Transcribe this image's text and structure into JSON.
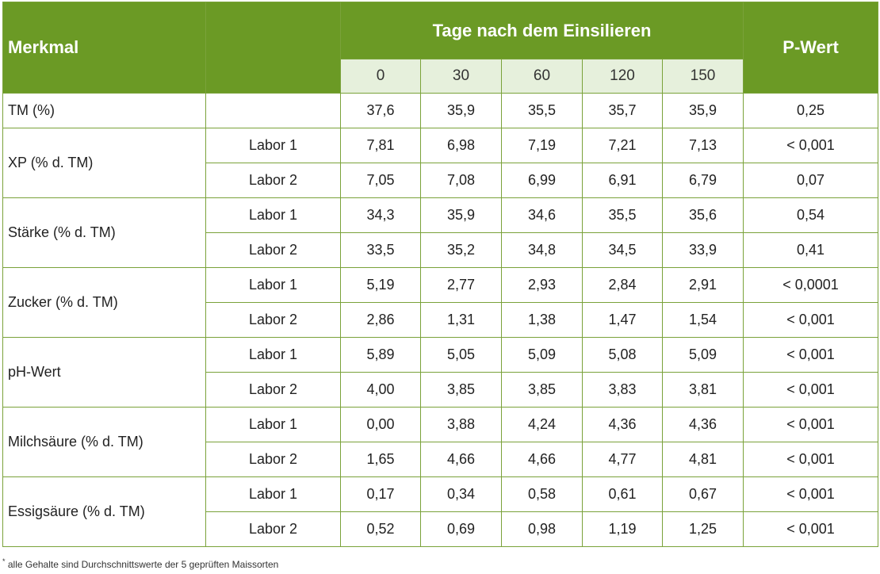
{
  "header": {
    "merkmal": "Merkmal",
    "tage": "Tage nach dem Einsilieren",
    "pwert": "P-Wert",
    "days": [
      "0",
      "30",
      "60",
      "120",
      "150"
    ]
  },
  "tm_row": {
    "label": "TM (%)",
    "values": [
      "37,6",
      "35,9",
      "35,5",
      "35,7",
      "35,9"
    ],
    "p": "0,25"
  },
  "groups": [
    {
      "label": "XP (% d. TM)",
      "rows": [
        {
          "lab": "Labor 1",
          "values": [
            "7,81",
            "6,98",
            "7,19",
            "7,21",
            "7,13"
          ],
          "p": "< 0,001"
        },
        {
          "lab": "Labor 2",
          "values": [
            "7,05",
            "7,08",
            "6,99",
            "6,91",
            "6,79"
          ],
          "p": "0,07"
        }
      ]
    },
    {
      "label": "Stärke (% d. TM)",
      "rows": [
        {
          "lab": "Labor 1",
          "values": [
            "34,3",
            "35,9",
            "34,6",
            "35,5",
            "35,6"
          ],
          "p": "0,54"
        },
        {
          "lab": "Labor 2",
          "values": [
            "33,5",
            "35,2",
            "34,8",
            "34,5",
            "33,9"
          ],
          "p": "0,41"
        }
      ]
    },
    {
      "label": "Zucker (% d. TM)",
      "rows": [
        {
          "lab": "Labor 1",
          "values": [
            "5,19",
            "2,77",
            "2,93",
            "2,84",
            "2,91"
          ],
          "p": "< 0,0001"
        },
        {
          "lab": "Labor 2",
          "values": [
            "2,86",
            "1,31",
            "1,38",
            "1,47",
            "1,54"
          ],
          "p": "< 0,001"
        }
      ]
    },
    {
      "label": "pH-Wert",
      "rows": [
        {
          "lab": "Labor 1",
          "values": [
            "5,89",
            "5,05",
            "5,09",
            "5,08",
            "5,09"
          ],
          "p": "< 0,001"
        },
        {
          "lab": "Labor 2",
          "values": [
            "4,00",
            "3,85",
            "3,85",
            "3,83",
            "3,81"
          ],
          "p": "< 0,001"
        }
      ]
    },
    {
      "label": "Milchsäure (% d. TM)",
      "rows": [
        {
          "lab": "Labor 1",
          "values": [
            "0,00",
            "3,88",
            "4,24",
            "4,36",
            "4,36"
          ],
          "p": "< 0,001"
        },
        {
          "lab": "Labor 2",
          "values": [
            "1,65",
            "4,66",
            "4,66",
            "4,77",
            "4,81"
          ],
          "p": "< 0,001"
        }
      ]
    },
    {
      "label": "Essigsäure (% d. TM)",
      "rows": [
        {
          "lab": "Labor 1",
          "values": [
            "0,17",
            "0,34",
            "0,58",
            "0,61",
            "0,67"
          ],
          "p": "< 0,001"
        },
        {
          "lab": "Labor 2",
          "values": [
            "0,52",
            "0,69",
            "0,98",
            "1,19",
            "1,25"
          ],
          "p": "< 0,001"
        }
      ]
    }
  ],
  "footnote": {
    "mark": "*",
    "text": " alle Gehalte sind Durchschnittswerte der 5 geprüften Maissorten"
  },
  "colors": {
    "header_green": "#6b9a25",
    "subheader_light": "#e6f0dc",
    "border_green": "#7aa23a"
  }
}
